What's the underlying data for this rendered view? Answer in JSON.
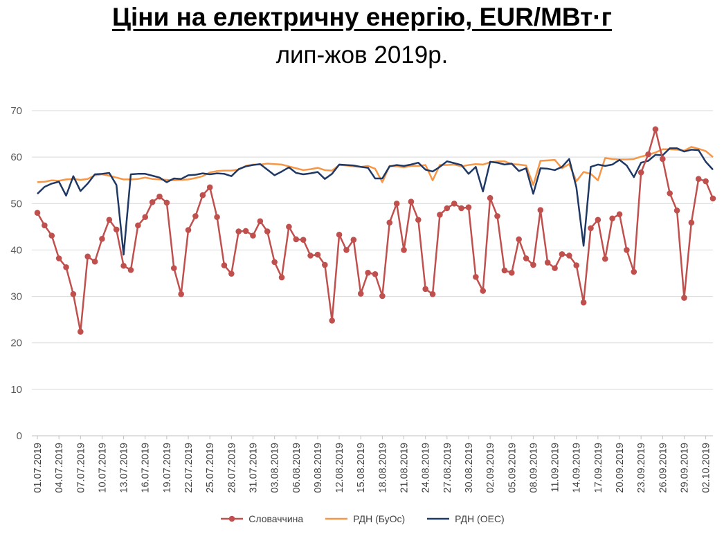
{
  "chart_data": {
    "type": "line",
    "title": "Ціни на електричну енергію, EUR/МВт·г",
    "subtitle": "лип-жов 2019р.",
    "ylim": [
      0,
      70
    ],
    "yticks": [
      0,
      10,
      20,
      30,
      40,
      50,
      60,
      70
    ],
    "grid": true,
    "legend_position": "bottom",
    "x_tick_labels": [
      "01.07.2019",
      "04.07.2019",
      "07.07.2019",
      "10.07.2019",
      "13.07.2019",
      "16.07.2019",
      "19.07.2019",
      "22.07.2019",
      "25.07.2019",
      "28.07.2019",
      "31.07.2019",
      "03.08.2019",
      "06.08.2019",
      "09.08.2019",
      "12.08.2019",
      "15.08.2019",
      "18.08.2019",
      "21.08.2019",
      "24.08.2019",
      "27.08.2019",
      "30.08.2019",
      "02.09.2019",
      "05.09.2019",
      "08.09.2019",
      "11.09.2019",
      "14.09.2019",
      "17.09.2019",
      "20.09.2019",
      "23.09.2019",
      "26.09.2019",
      "29.09.2019",
      "02.10.2019"
    ],
    "x_start": "01.07.2019",
    "x_end": "03.10.2019",
    "series": [
      {
        "name": "Словаччина",
        "color": "#C0504D",
        "marker": "circle",
        "values": [
          48.0,
          45.3,
          43.1,
          38.2,
          36.3,
          30.5,
          22.4,
          38.6,
          37.5,
          42.4,
          46.5,
          44.4,
          36.6,
          35.7,
          45.3,
          47.1,
          50.3,
          51.5,
          50.2,
          36.1,
          30.5,
          44.3,
          47.3,
          51.8,
          53.5,
          47.1,
          36.7,
          34.9,
          44.0,
          44.1,
          43.1,
          46.2,
          44.0,
          37.4,
          34.1,
          45.0,
          42.3,
          42.2,
          38.8,
          39.0,
          36.8,
          24.8,
          43.3,
          40.0,
          42.2,
          30.6,
          35.1,
          34.8,
          30.1,
          45.9,
          50.0,
          40.0,
          50.4,
          46.5,
          31.6,
          30.5,
          47.6,
          49.0,
          50.0,
          49.0,
          49.2,
          34.2,
          31.2,
          51.2,
          47.3,
          35.6,
          35.1,
          42.3,
          38.2,
          36.8,
          48.6,
          37.3,
          36.1,
          39.1,
          38.8,
          36.7,
          28.7,
          44.7,
          46.5,
          38.1,
          46.8,
          47.7,
          40.0,
          35.3,
          56.7,
          60.6,
          66.0,
          59.6,
          52.2,
          48.5,
          29.7,
          45.9,
          55.3,
          54.8,
          51.1
        ]
      },
      {
        "name": "РДН (БуОс)",
        "color": "#F79646",
        "marker": "none",
        "values": [
          54.6,
          54.7,
          55.0,
          54.9,
          55.2,
          55.3,
          55.1,
          55.3,
          56.1,
          56.3,
          56.0,
          55.6,
          55.2,
          55.2,
          55.3,
          55.6,
          55.3,
          55.2,
          55.1,
          55.0,
          55.1,
          55.2,
          55.5,
          55.9,
          56.7,
          57.0,
          57.1,
          57.1,
          57.3,
          58.1,
          58.4,
          58.4,
          58.6,
          58.5,
          58.4,
          58.0,
          57.6,
          57.2,
          57.4,
          57.7,
          57.2,
          57.1,
          58.3,
          58.2,
          58.0,
          57.9,
          58.1,
          57.5,
          54.6,
          58.1,
          58.0,
          57.8,
          58.1,
          58.1,
          58.3,
          55.0,
          58.3,
          58.3,
          58.4,
          58.0,
          58.3,
          58.5,
          58.4,
          58.9,
          59.1,
          59.1,
          58.5,
          58.4,
          58.2,
          54.0,
          59.2,
          59.3,
          59.4,
          57.6,
          58.5,
          54.8,
          56.8,
          56.4,
          55.0,
          59.8,
          59.6,
          59.5,
          59.5,
          59.6,
          60.1,
          60.5,
          61.0,
          61.7,
          61.7,
          61.6,
          61.4,
          62.2,
          61.8,
          61.3,
          60.0
        ]
      },
      {
        "name": "РДН (ОЕС)",
        "color": "#1F3864",
        "marker": "none",
        "values": [
          52.1,
          53.6,
          54.3,
          54.7,
          51.7,
          55.9,
          52.7,
          54.3,
          56.3,
          56.4,
          56.6,
          54.0,
          39.0,
          56.3,
          56.4,
          56.4,
          56.0,
          55.6,
          54.6,
          55.4,
          55.3,
          56.1,
          56.2,
          56.5,
          56.3,
          56.5,
          56.4,
          55.9,
          57.4,
          58.0,
          58.3,
          58.5,
          57.3,
          56.1,
          56.9,
          57.8,
          56.6,
          56.3,
          56.5,
          56.8,
          55.3,
          56.4,
          58.4,
          58.3,
          58.2,
          57.9,
          57.7,
          55.4,
          55.4,
          58.0,
          58.3,
          58.1,
          58.4,
          58.8,
          57.3,
          56.9,
          57.9,
          59.1,
          58.7,
          58.3,
          56.4,
          57.9,
          52.6,
          59.0,
          58.8,
          58.4,
          58.6,
          57.0,
          57.6,
          52.1,
          57.6,
          57.5,
          57.2,
          57.9,
          59.6,
          53.5,
          40.9,
          57.9,
          58.4,
          58.1,
          58.4,
          59.4,
          58.2,
          55.7,
          58.8,
          59.2,
          60.5,
          60.4,
          61.9,
          61.9,
          61.2,
          61.6,
          61.5,
          59.0,
          57.3
        ]
      }
    ]
  }
}
